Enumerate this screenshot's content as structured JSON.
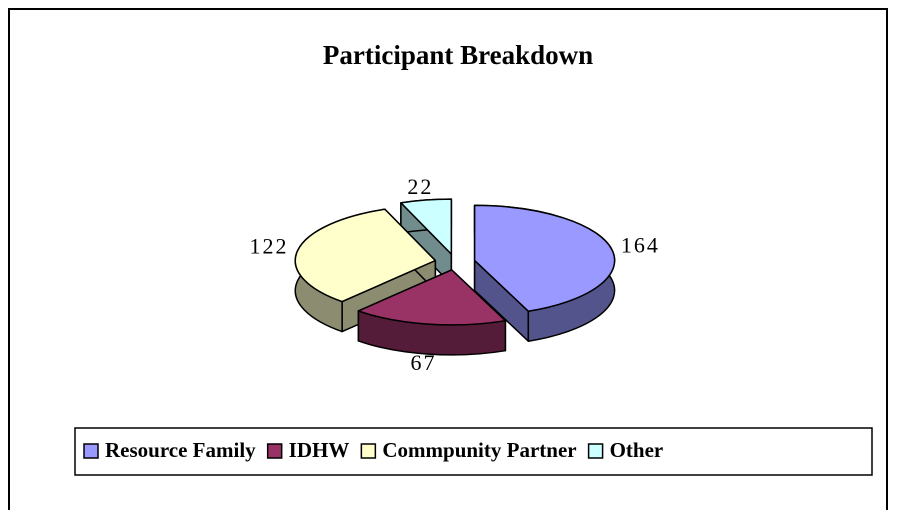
{
  "chart_data": {
    "type": "pie",
    "title": "Participant Breakdown",
    "categories": [
      "Resource Family",
      "IDHW",
      "Commpunity Partner",
      "Other"
    ],
    "values": [
      164,
      67,
      122,
      22
    ],
    "colors": [
      "#9999ff",
      "#993366",
      "#ffffcc",
      "#ccffff"
    ],
    "legend": "bottom"
  }
}
